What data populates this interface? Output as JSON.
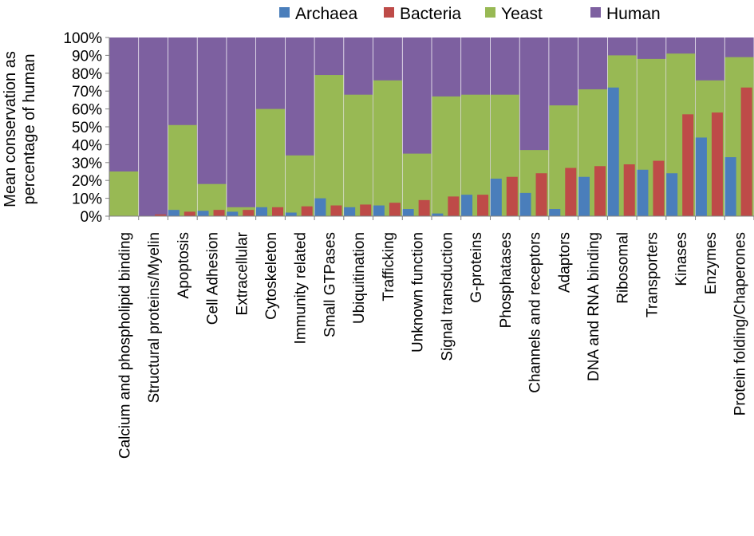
{
  "chart_data": {
    "type": "bar",
    "stacked_overlay": true,
    "title": "",
    "ylabel": "Mean conservation as percentage of human",
    "ylabel_lines": [
      "Mean conservation as",
      "percentage of human"
    ],
    "xlabel": "",
    "ylim": [
      0,
      100
    ],
    "y_ticks": [
      0,
      10,
      20,
      30,
      40,
      50,
      60,
      70,
      80,
      90,
      100
    ],
    "y_tick_labels": [
      "0%",
      "10%",
      "20%",
      "30%",
      "40%",
      "50%",
      "60%",
      "70%",
      "80%",
      "90%",
      "100%"
    ],
    "legend_position": "top-right",
    "categories": [
      "Calcium and phospholipid binding",
      "Structural proteins/Myelin",
      "Apoptosis",
      "Cell Adhesion",
      "Extracellular",
      "Cytoskeleton",
      "Immunity related",
      "Small GTPases",
      "Ubiquitination",
      "Trafficking",
      "Unknown function",
      "Signal transduction",
      "G-proteins",
      "Phosphatases",
      "Channels and receptors",
      "Adaptors",
      "DNA and RNA binding",
      "Ribosomal",
      "Transporters",
      "Kinases",
      "Enzymes",
      "Protein folding/Chaperones"
    ],
    "series": [
      {
        "name": "Archaea",
        "color": "#4a7ebb",
        "values": [
          0,
          0,
          3.5,
          3,
          2.5,
          5,
          2,
          10,
          5,
          6,
          4,
          1.5,
          12,
          21,
          13,
          4,
          22,
          72,
          26,
          24,
          44,
          33
        ]
      },
      {
        "name": "Bacteria",
        "color": "#be4b48",
        "values": [
          0,
          1,
          2.5,
          3.5,
          3.5,
          5,
          5.5,
          6,
          6.5,
          7.5,
          9,
          11,
          12,
          22,
          24,
          27,
          28,
          29,
          31,
          57,
          58,
          72
        ]
      },
      {
        "name": "Yeast",
        "color": "#98b954",
        "values": [
          25,
          0,
          51,
          18,
          5,
          60,
          34,
          79,
          68,
          76,
          35,
          67,
          68,
          68,
          37,
          62,
          71,
          90,
          88,
          91,
          76,
          89
        ]
      },
      {
        "name": "Human",
        "color": "#7d60a0",
        "values": [
          100,
          100,
          100,
          100,
          100,
          100,
          100,
          100,
          100,
          100,
          100,
          100,
          100,
          100,
          100,
          100,
          100,
          100,
          100,
          100,
          100,
          100
        ]
      }
    ]
  }
}
